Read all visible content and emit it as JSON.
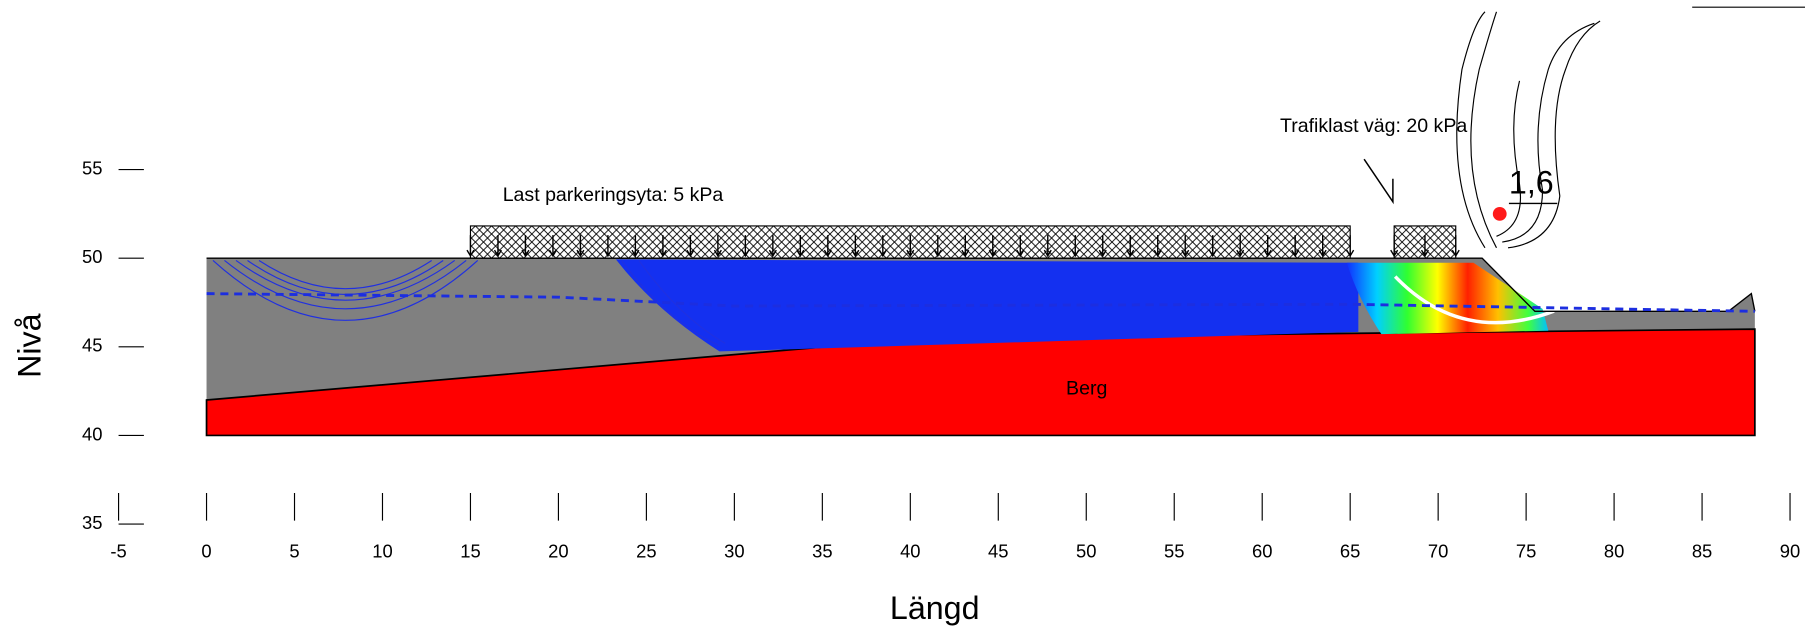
{
  "chart_data": {
    "type": "slope",
    "x_label": "Längd",
    "y_label": "Nivå",
    "xlim": [
      -5,
      90
    ],
    "ylim": [
      35,
      55
    ],
    "xticks": [
      -5,
      0,
      5,
      10,
      15,
      20,
      25,
      30,
      35,
      40,
      45,
      50,
      55,
      60,
      65,
      70,
      75,
      80,
      85,
      90
    ],
    "yticks": [
      35,
      40,
      45,
      50,
      55
    ],
    "ground_surface": {
      "x": [
        0,
        72.5,
        75.5,
        86.5,
        87.8,
        88
      ],
      "y": [
        50,
        50,
        47,
        47,
        48,
        47
      ],
      "color": "#808080"
    },
    "bedrock": {
      "name": "Berg",
      "x": [
        0,
        41,
        88
      ],
      "y": [
        42,
        45.5,
        46
      ],
      "base_level": 40,
      "color": "#ff0000"
    },
    "water_table": {
      "x": [
        0,
        20,
        30,
        65,
        88
      ],
      "y": [
        48,
        47.8,
        47.3,
        47.4,
        47
      ],
      "color": "#1c2ee0"
    },
    "loads": [
      {
        "label": "Last parkeringsyta: 5 kPa",
        "x": [
          15,
          65
        ]
      },
      {
        "label": "Trafiklast väg: 20 kPa",
        "x": [
          67.5,
          71
        ]
      }
    ],
    "critical_center": {
      "x": 73.5,
      "y": 52.5,
      "label": "1,6",
      "color": "#ff1a1a"
    }
  }
}
